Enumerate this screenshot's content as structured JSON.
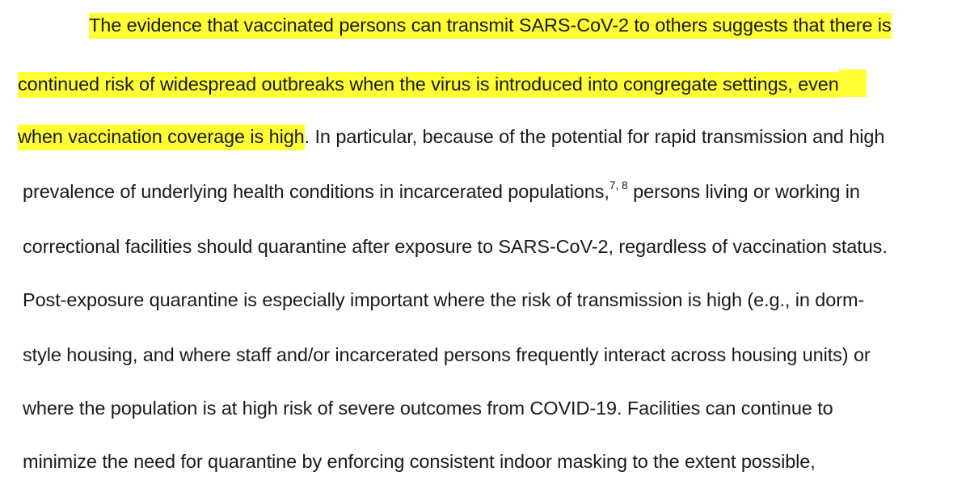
{
  "paragraph": {
    "line1": {
      "highlighted": "The evidence that vaccinated persons can transmit SARS-CoV-2 to others suggests that there is"
    },
    "line2": {
      "highlighted": "continued risk of widespread outbreaks when the virus is introduced into congregate settings, even"
    },
    "line3": {
      "highlighted": "when vaccination coverage is high",
      "rest": ". In particular, because of the potential for rapid transmission and high"
    },
    "line4": {
      "before": "prevalence of underlying health conditions in incarcerated populations,",
      "footnote": "7, 8",
      "after": " persons living or working in"
    },
    "line5": "correctional facilities should quarantine after exposure to SARS-CoV-2, regardless of vaccination status.",
    "line6": "Post-exposure quarantine is especially important where the risk of transmission is high (e.g., in dorm-",
    "line7": "style housing, and where staff and/or incarcerated persons frequently interact across housing units) or",
    "line8": "where the population is at high risk of severe outcomes from COVID-19. Facilities can continue to",
    "line9": "minimize the need for quarantine by enforcing consistent indoor masking to the extent possible,"
  },
  "colors": {
    "highlight": "#ffff33",
    "text": "#1a1a1a"
  }
}
